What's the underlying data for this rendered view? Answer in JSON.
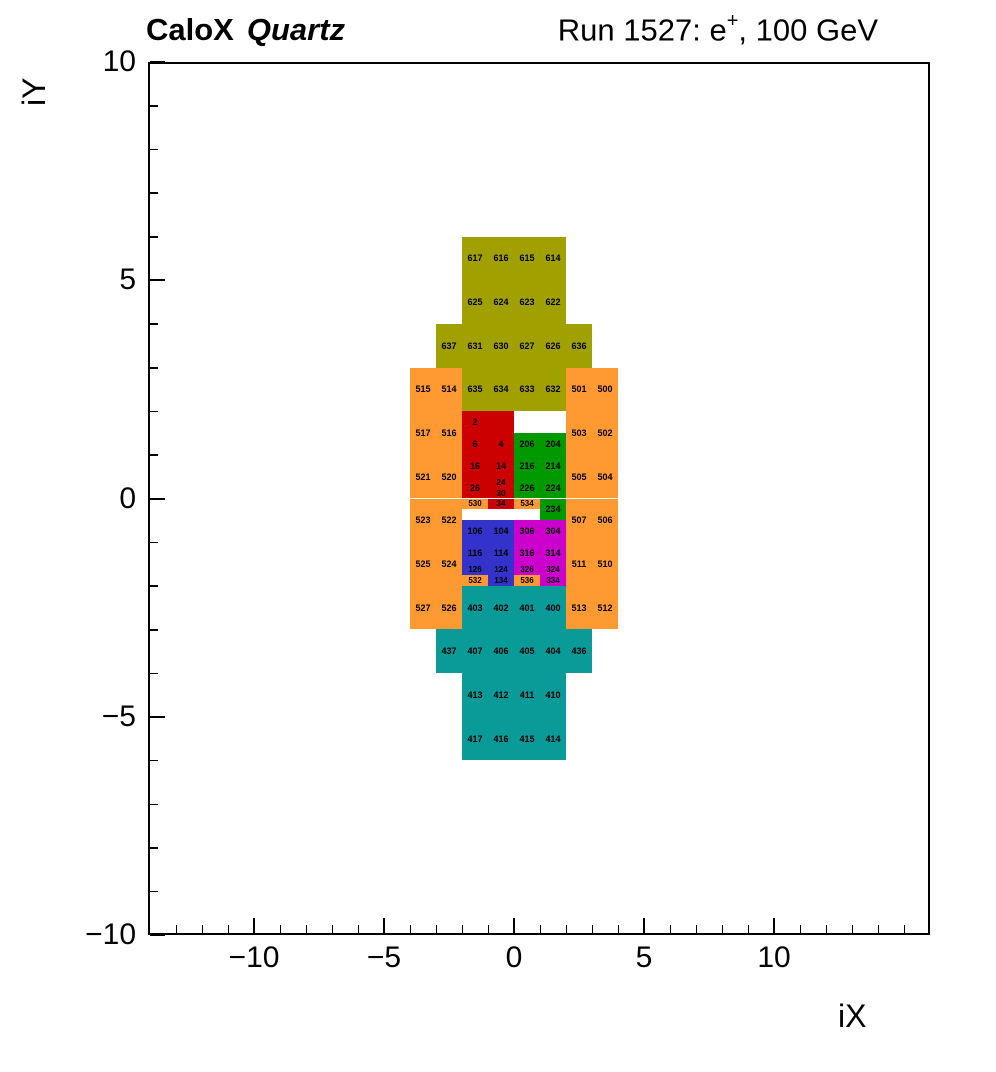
{
  "header": {
    "experiment": "CaloX",
    "subtitle": "Quartz",
    "run_prefix": "Run 1527: e",
    "run_sup": "+",
    "run_suffix": ", 100 GeV"
  },
  "chart_data": {
    "type": "heatmap",
    "title": "CaloX Quartz",
    "annotation": "Run 1527: e+, 100 GeV",
    "xlabel": "iX",
    "ylabel": "iY",
    "xlim": [
      -14,
      16
    ],
    "ylim": [
      -10,
      10
    ],
    "xticks": [
      -10,
      -5,
      0,
      5,
      10
    ],
    "yticks": [
      -10,
      -5,
      0,
      5,
      10
    ],
    "grid": false,
    "legend": false,
    "palette": {
      "olive": "#a0a000",
      "orange": "#ff9a33",
      "red": "#cc0000",
      "green": "#009900",
      "blue": "#3333cc",
      "magenta": "#cc00cc",
      "teal": "#0a9a98"
    },
    "cells": [
      [
        "617",
        "olive",
        -2,
        -1,
        5,
        6
      ],
      [
        "616",
        "olive",
        -1,
        0,
        5,
        6
      ],
      [
        "615",
        "olive",
        0,
        1,
        5,
        6
      ],
      [
        "614",
        "olive",
        1,
        2,
        5,
        6
      ],
      [
        "625",
        "olive",
        -2,
        -1,
        4,
        5
      ],
      [
        "624",
        "olive",
        -1,
        0,
        4,
        5
      ],
      [
        "623",
        "olive",
        0,
        1,
        4,
        5
      ],
      [
        "622",
        "olive",
        1,
        2,
        4,
        5
      ],
      [
        "637",
        "olive",
        -3,
        -2,
        3,
        4
      ],
      [
        "631",
        "olive",
        -2,
        -1,
        3,
        4
      ],
      [
        "630",
        "olive",
        -1,
        0,
        3,
        4
      ],
      [
        "627",
        "olive",
        0,
        1,
        3,
        4
      ],
      [
        "626",
        "olive",
        1,
        2,
        3,
        4
      ],
      [
        "636",
        "olive",
        2,
        3,
        3,
        4
      ],
      [
        "635",
        "olive",
        -2,
        -1,
        2,
        3
      ],
      [
        "634",
        "olive",
        -1,
        0,
        2,
        3
      ],
      [
        "633",
        "olive",
        0,
        1,
        2,
        3
      ],
      [
        "632",
        "olive",
        1,
        2,
        2,
        3
      ],
      [
        "515",
        "orange",
        -4,
        -3,
        2,
        3
      ],
      [
        "514",
        "orange",
        -3,
        -2,
        2,
        3
      ],
      [
        "501",
        "orange",
        2,
        3,
        2,
        3
      ],
      [
        "500",
        "orange",
        3,
        4,
        2,
        3
      ],
      [
        "517",
        "orange",
        -4,
        -3,
        1,
        2
      ],
      [
        "516",
        "orange",
        -3,
        -2,
        1,
        2
      ],
      [
        "503",
        "orange",
        2,
        3,
        1,
        2
      ],
      [
        "502",
        "orange",
        3,
        4,
        1,
        2
      ],
      [
        "521",
        "orange",
        -4,
        -3,
        0,
        1
      ],
      [
        "520",
        "orange",
        -3,
        -2,
        0,
        1
      ],
      [
        "505",
        "orange",
        2,
        3,
        0,
        1
      ],
      [
        "504",
        "orange",
        3,
        4,
        0,
        1
      ],
      [
        "523",
        "orange",
        -4,
        -3,
        -1,
        0
      ],
      [
        "522",
        "orange",
        -3,
        -2,
        -1,
        0
      ],
      [
        "507",
        "orange",
        2,
        3,
        -1,
        0
      ],
      [
        "506",
        "orange",
        3,
        4,
        -1,
        0
      ],
      [
        "525",
        "orange",
        -4,
        -3,
        -2,
        -1
      ],
      [
        "524",
        "orange",
        -3,
        -2,
        -2,
        -1
      ],
      [
        "511",
        "orange",
        2,
        3,
        -2,
        -1
      ],
      [
        "510",
        "orange",
        3,
        4,
        -2,
        -1
      ],
      [
        "527",
        "orange",
        -4,
        -3,
        -3,
        -2
      ],
      [
        "526",
        "orange",
        -3,
        -2,
        -3,
        -2
      ],
      [
        "513",
        "orange",
        2,
        3,
        -3,
        -2
      ],
      [
        "512",
        "orange",
        3,
        4,
        -3,
        -2
      ],
      [
        "2",
        "red",
        -2,
        -1,
        1.5,
        2
      ],
      [
        "",
        "red",
        -1,
        0,
        1.5,
        2
      ],
      [
        "6",
        "red",
        -2,
        -1,
        1,
        1.5
      ],
      [
        "4",
        "red",
        -1,
        0,
        1,
        1.5
      ],
      [
        "16",
        "red",
        -2,
        -1,
        0.5,
        1
      ],
      [
        "14",
        "red",
        -1,
        0,
        0.5,
        1
      ],
      [
        "26",
        "red",
        -2,
        -1,
        0,
        0.5
      ],
      [
        "24",
        "red",
        -1,
        0,
        0.25,
        0.5
      ],
      [
        "30",
        "red",
        -1,
        0,
        0,
        0.25
      ],
      [
        "34",
        "red",
        -1,
        0,
        -0.25,
        0
      ],
      [
        "206",
        "green",
        0,
        1,
        1,
        1.5
      ],
      [
        "204",
        "green",
        1,
        2,
        1,
        1.5
      ],
      [
        "216",
        "green",
        0,
        1,
        0.5,
        1
      ],
      [
        "214",
        "green",
        1,
        2,
        0.5,
        1
      ],
      [
        "226",
        "green",
        0,
        1,
        0,
        0.5
      ],
      [
        "224",
        "green",
        1,
        2,
        0,
        0.5
      ],
      [
        "234",
        "green",
        1,
        2,
        -0.5,
        0
      ],
      [
        "530",
        "orange",
        -2,
        -1,
        -0.25,
        0
      ],
      [
        "534",
        "orange",
        0,
        1,
        -0.25,
        0
      ],
      [
        "106",
        "blue",
        -2,
        -1,
        -1,
        -0.5
      ],
      [
        "104",
        "blue",
        -1,
        0,
        -1,
        -0.5
      ],
      [
        "116",
        "blue",
        -2,
        -1,
        -1.5,
        -1
      ],
      [
        "114",
        "blue",
        -1,
        0,
        -1.5,
        -1
      ],
      [
        "126",
        "blue",
        -2,
        -1,
        -1.75,
        -1.5
      ],
      [
        "124",
        "blue",
        -1,
        0,
        -1.75,
        -1.5
      ],
      [
        "134",
        "blue",
        -1,
        0,
        -2,
        -1.75
      ],
      [
        "306",
        "magenta",
        0,
        1,
        -1,
        -0.5
      ],
      [
        "304",
        "magenta",
        1,
        2,
        -1,
        -0.5
      ],
      [
        "316",
        "magenta",
        0,
        1,
        -1.5,
        -1
      ],
      [
        "314",
        "magenta",
        1,
        2,
        -1.5,
        -1
      ],
      [
        "326",
        "magenta",
        0,
        1,
        -1.75,
        -1.5
      ],
      [
        "324",
        "magenta",
        1,
        2,
        -1.75,
        -1.5
      ],
      [
        "334",
        "magenta",
        1,
        2,
        -2,
        -1.75
      ],
      [
        "532",
        "orange",
        -2,
        -1,
        -2,
        -1.75
      ],
      [
        "536",
        "orange",
        0,
        1,
        -2,
        -1.75
      ],
      [
        "403",
        "teal",
        -2,
        -1,
        -3,
        -2
      ],
      [
        "402",
        "teal",
        -1,
        0,
        -3,
        -2
      ],
      [
        "401",
        "teal",
        0,
        1,
        -3,
        -2
      ],
      [
        "400",
        "teal",
        1,
        2,
        -3,
        -2
      ],
      [
        "437",
        "teal",
        -3,
        -2,
        -4,
        -3
      ],
      [
        "407",
        "teal",
        -2,
        -1,
        -4,
        -3
      ],
      [
        "406",
        "teal",
        -1,
        0,
        -4,
        -3
      ],
      [
        "405",
        "teal",
        0,
        1,
        -4,
        -3
      ],
      [
        "404",
        "teal",
        1,
        2,
        -4,
        -3
      ],
      [
        "436",
        "teal",
        2,
        3,
        -4,
        -3
      ],
      [
        "413",
        "teal",
        -2,
        -1,
        -5,
        -4
      ],
      [
        "412",
        "teal",
        -1,
        0,
        -5,
        -4
      ],
      [
        "411",
        "teal",
        0,
        1,
        -5,
        -4
      ],
      [
        "410",
        "teal",
        1,
        2,
        -5,
        -4
      ],
      [
        "417",
        "teal",
        -2,
        -1,
        -6,
        -5
      ],
      [
        "416",
        "teal",
        -1,
        0,
        -6,
        -5
      ],
      [
        "415",
        "teal",
        0,
        1,
        -6,
        -5
      ],
      [
        "414",
        "teal",
        1,
        2,
        -6,
        -5
      ]
    ]
  }
}
